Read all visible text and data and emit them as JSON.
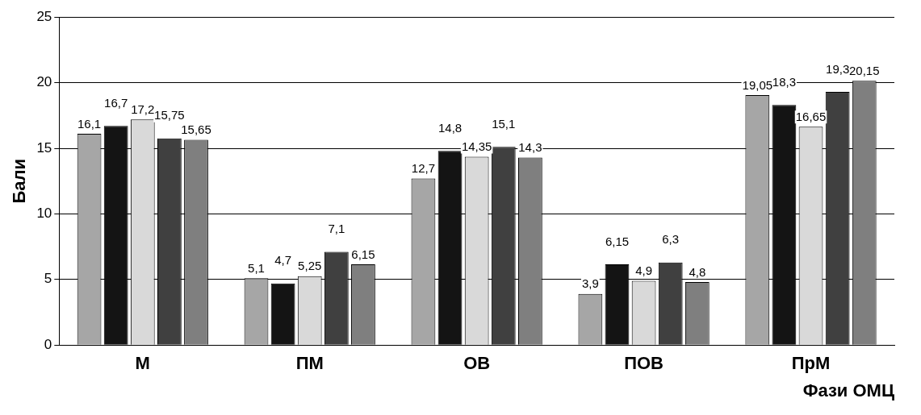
{
  "chart_data": {
    "type": "bar",
    "xlabel": "Фази ОМЦ",
    "ylabel": "Бали",
    "categories": [
      "М",
      "ПМ",
      "ОВ",
      "ПОВ",
      "ПрМ"
    ],
    "series": [
      {
        "color": "#a6a6a6",
        "values": [
          16.1,
          5.1,
          12.7,
          3.9,
          19.05
        ],
        "value_labels": [
          "16,1",
          "5,1",
          "12,7",
          "3,9",
          "19,05"
        ]
      },
      {
        "color": "#141414",
        "values": [
          16.7,
          4.7,
          14.8,
          6.15,
          18.3
        ],
        "value_labels": [
          "16,7",
          "4,7",
          "14,8",
          "6,15",
          "18,3"
        ]
      },
      {
        "color": "#d9d9d9",
        "values": [
          17.2,
          5.25,
          14.35,
          4.9,
          16.65
        ],
        "value_labels": [
          "17,2",
          "5,25",
          "14,35",
          "4,9",
          "16,65"
        ]
      },
      {
        "color": "#404040",
        "values": [
          15.75,
          7.1,
          15.1,
          6.3,
          19.3
        ],
        "value_labels": [
          "15,75",
          "7,1",
          "15,1",
          "6,3",
          "19,3"
        ]
      },
      {
        "color": "#7f7f7f",
        "values": [
          15.65,
          6.15,
          14.3,
          4.8,
          20.15
        ],
        "value_labels": [
          "15,65",
          "6,15",
          "14,3",
          "4,8",
          "20,15"
        ]
      }
    ],
    "ylim": [
      0,
      25
    ],
    "yticks": [
      0,
      5,
      10,
      15,
      20,
      25
    ],
    "grid": "y"
  }
}
